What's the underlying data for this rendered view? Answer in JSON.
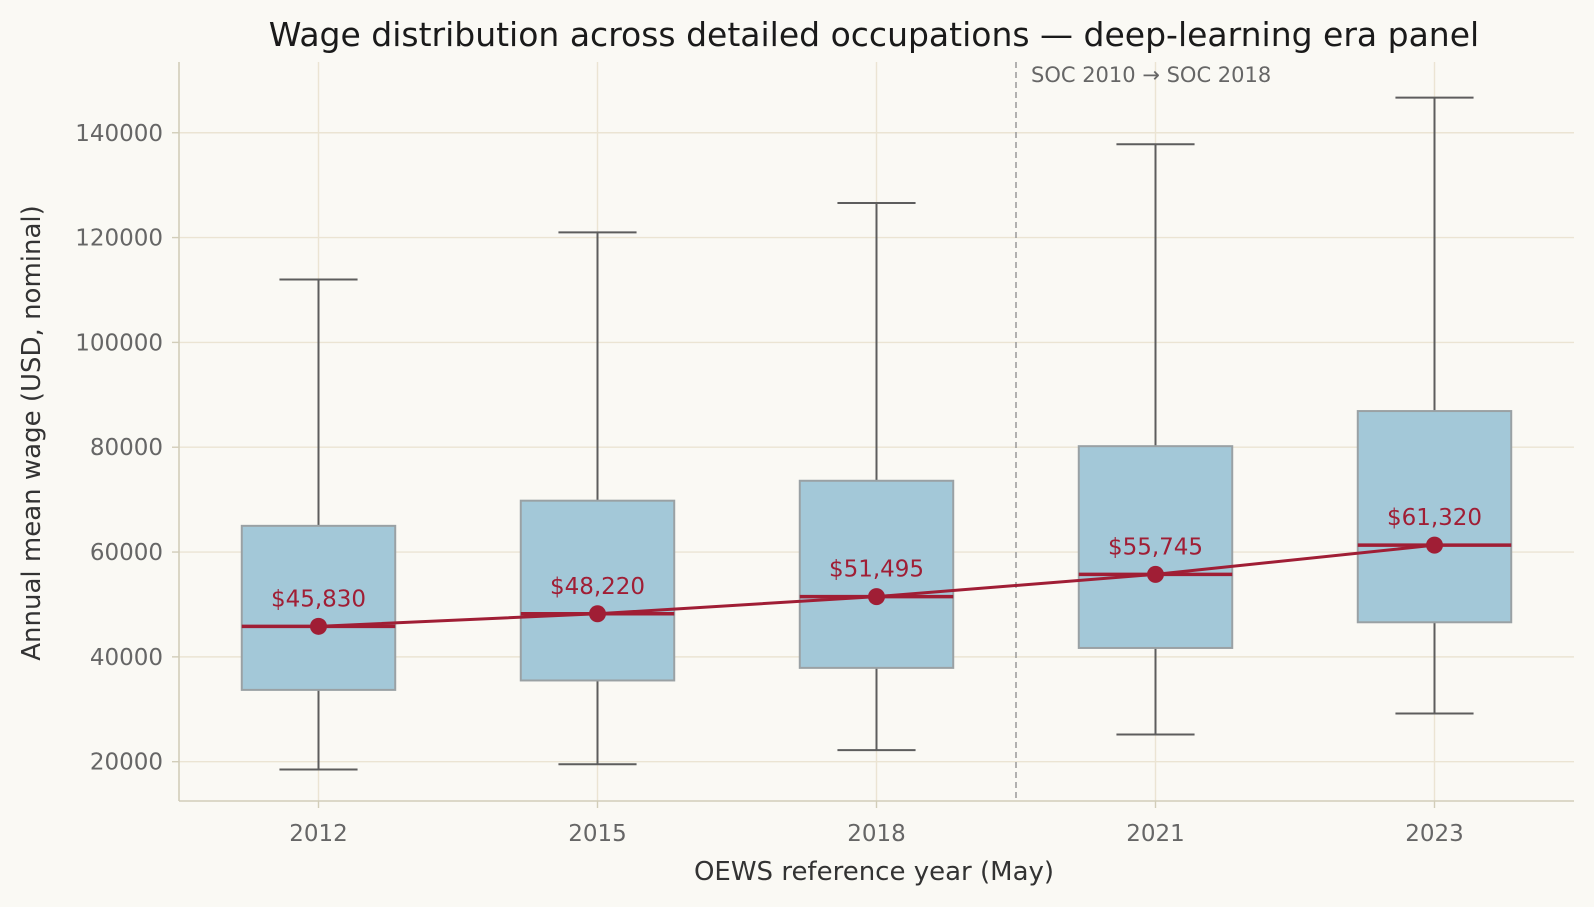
{
  "chart_data": {
    "type": "box",
    "title": "Wage distribution across detailed occupations — deep-learning era panel",
    "xlabel": "OEWS reference year (May)",
    "ylabel": "Annual mean wage (USD, nominal)",
    "categories": [
      "2012",
      "2015",
      "2018",
      "2021",
      "2023"
    ],
    "ylim": [
      12500,
      153500
    ],
    "yticks": [
      20000,
      40000,
      60000,
      80000,
      100000,
      120000,
      140000
    ],
    "grid": true,
    "boxes": [
      {
        "whisker_low": 18500,
        "q1": 33700,
        "median": 45830,
        "q3": 65000,
        "whisker_high": 112000
      },
      {
        "whisker_low": 19500,
        "q1": 35500,
        "median": 48220,
        "q3": 69800,
        "whisker_high": 121000
      },
      {
        "whisker_low": 22200,
        "q1": 37900,
        "median": 51495,
        "q3": 73600,
        "whisker_high": 126600
      },
      {
        "whisker_low": 25200,
        "q1": 41700,
        "median": 55745,
        "q3": 80200,
        "whisker_high": 137800
      },
      {
        "whisker_low": 29200,
        "q1": 46600,
        "median": 61320,
        "q3": 86900,
        "whisker_high": 146700
      }
    ],
    "median_line": {
      "values": [
        45830,
        48220,
        51495,
        55745,
        61320
      ],
      "labels": [
        "$45,830",
        "$48,220",
        "$51,495",
        "$55,745",
        "$61,320"
      ]
    },
    "annotation": {
      "text": "SOC 2010 → SOC 2018",
      "x_between": [
        "2018",
        "2021"
      ]
    },
    "colors": {
      "background": "#faf9f4",
      "box_fill": "#a3c8d8",
      "box_edge": "#9aa1a4",
      "whisker": "#5d5d5d",
      "median": "#a01e35",
      "grid": "#ebe4d3",
      "axis": "#d2cdb9",
      "annotation_line": "#999999"
    }
  }
}
